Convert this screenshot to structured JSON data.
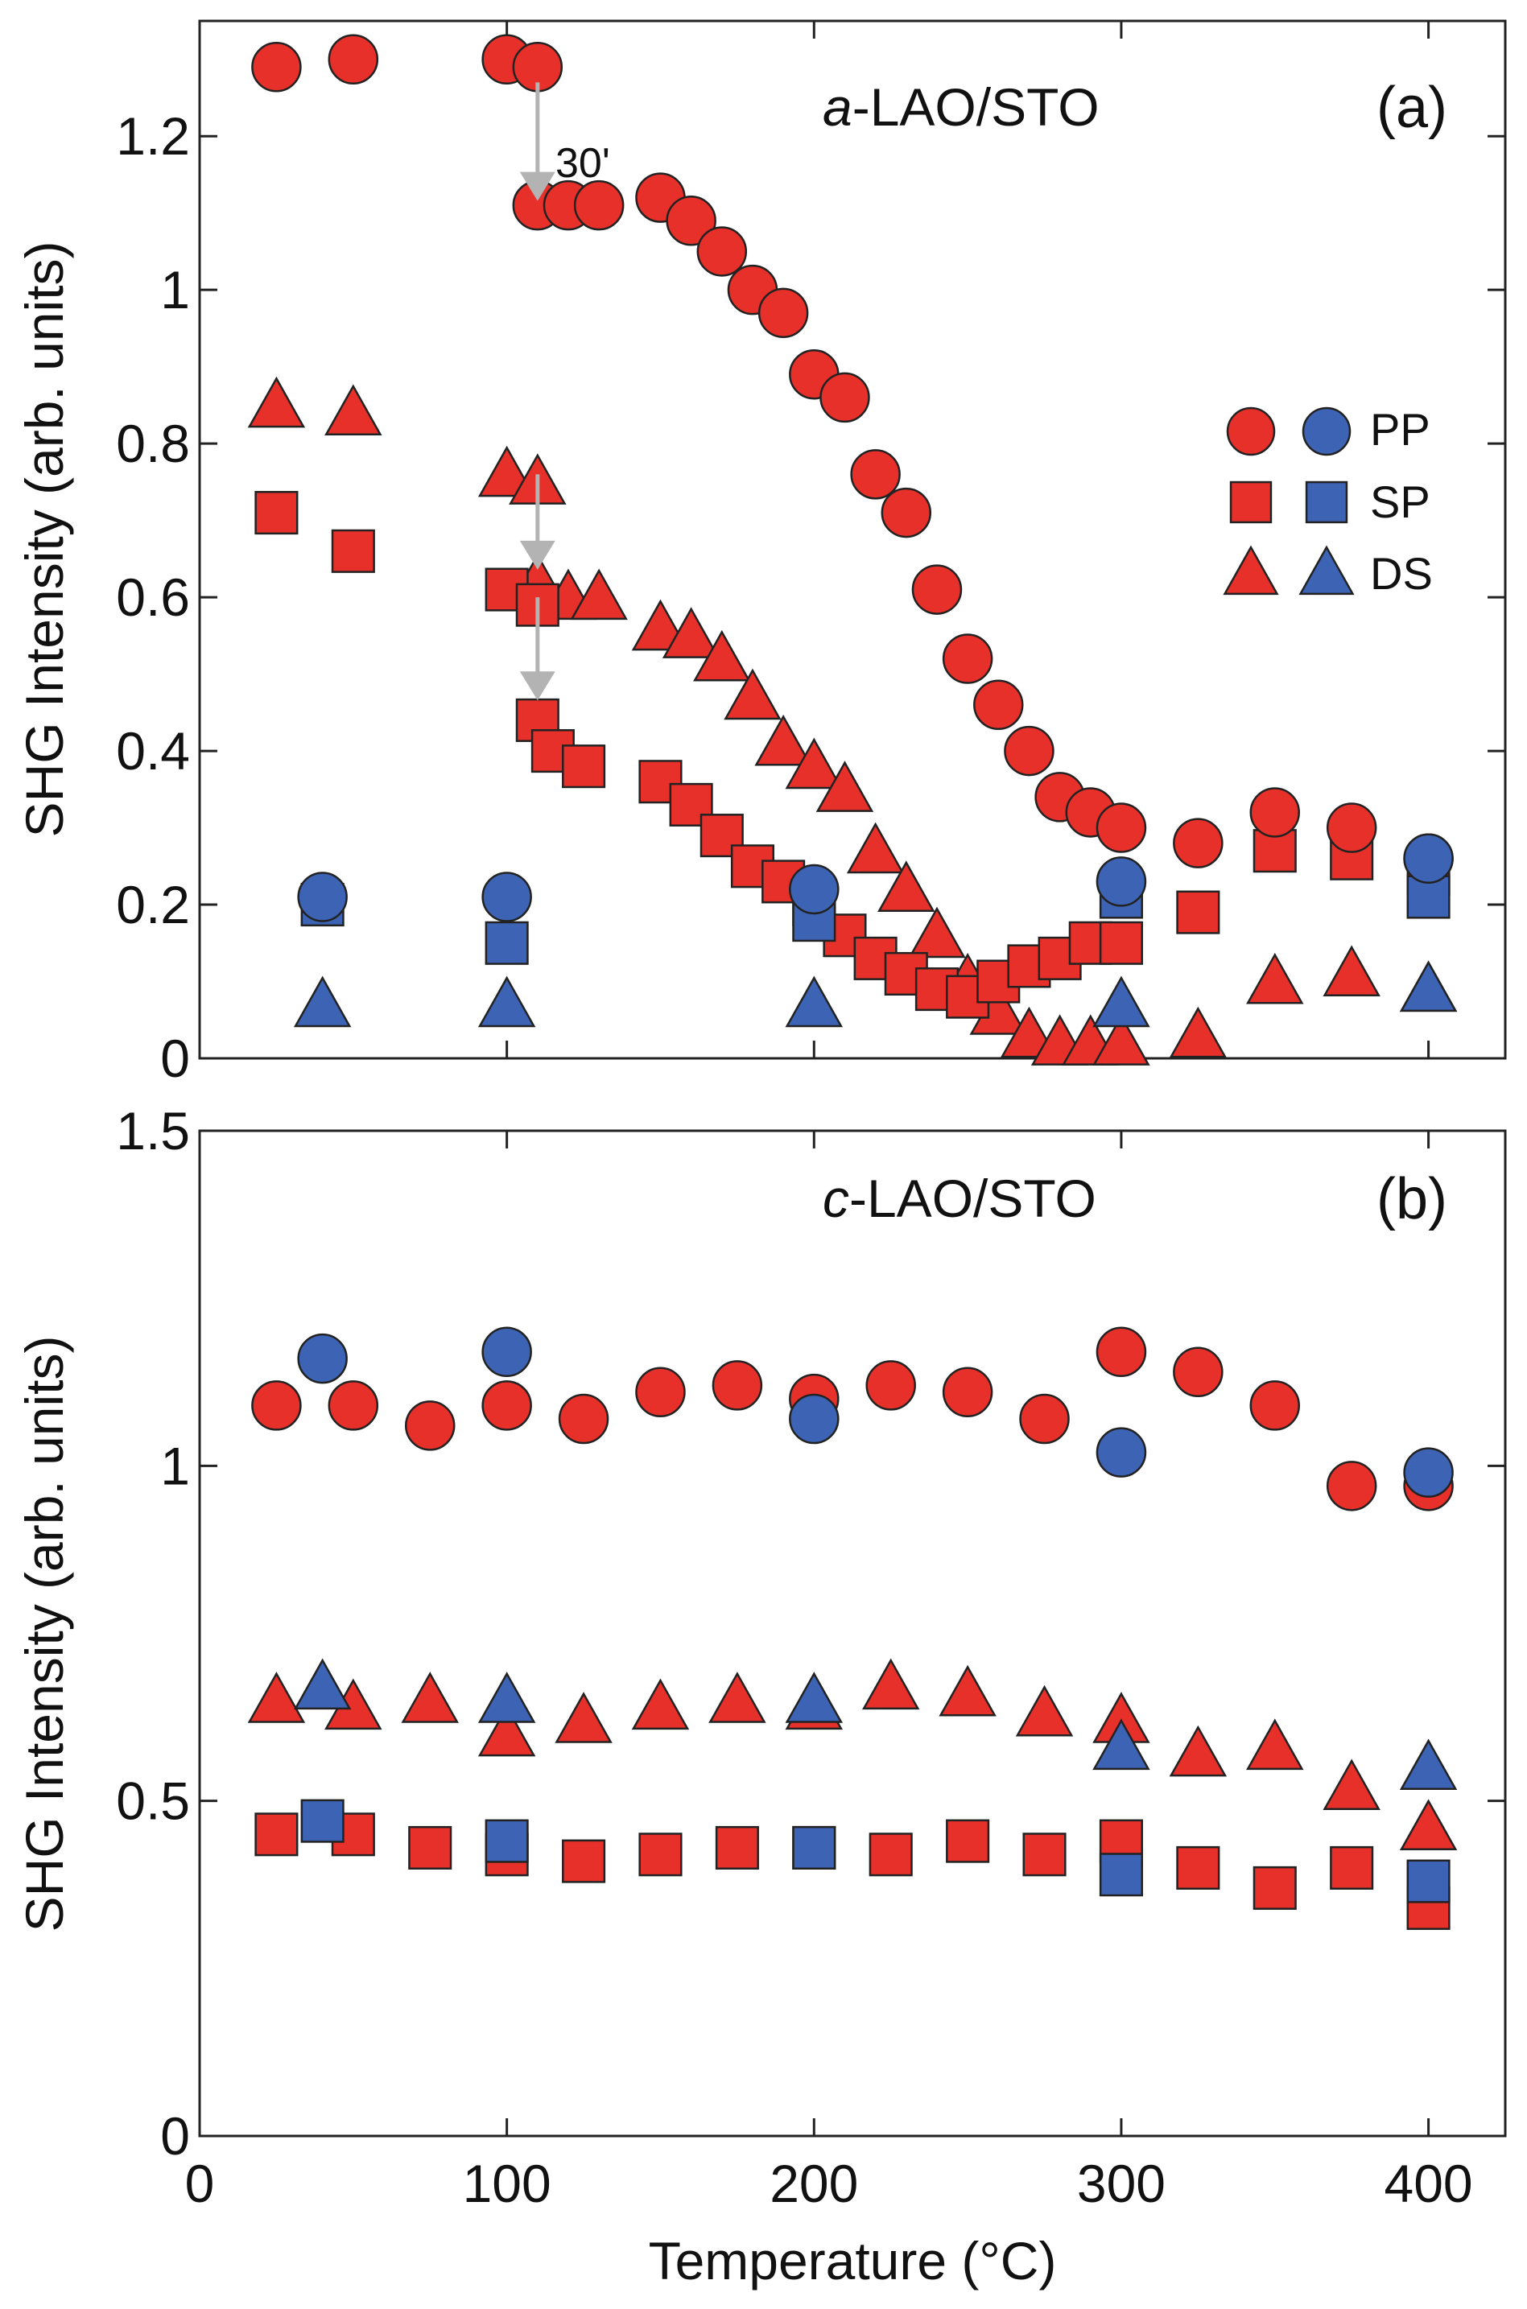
{
  "colors": {
    "red": "#e8302a",
    "blue": "#3d63b5",
    "arrow": "#b3b3b3",
    "edge": "#222222"
  },
  "figure": {
    "xlabel": "Temperature (°C)",
    "ylabel": "SHG Intensity (arb. units)"
  },
  "chart_data": [
    {
      "type": "scatter",
      "panel_label": "(a)",
      "title_italic": "a",
      "title_rest": "-LAO/STO",
      "ylabel": "SHG Intensity (arb. units)",
      "xlim": [
        0,
        425
      ],
      "ylim": [
        0,
        1.35
      ],
      "xticks": [
        0,
        100,
        200,
        300,
        400
      ],
      "yticks": [
        0,
        0.2,
        0.4,
        0.6,
        0.8,
        1,
        1.2
      ],
      "ytick_labels": [
        "0",
        "0.2",
        "0.4",
        "0.6",
        "0.8",
        "1",
        "1.2"
      ],
      "legend": {
        "position": "right",
        "entries": [
          {
            "label": "PP",
            "marker": "circle"
          },
          {
            "label": "SP",
            "marker": "square"
          },
          {
            "label": "DS",
            "marker": "triangle"
          }
        ]
      },
      "annotations": [
        {
          "text": "30'",
          "x": 117,
          "y": 1.22
        },
        {
          "type": "arrow",
          "x": 110,
          "from": 1.27,
          "to": 1.12
        },
        {
          "type": "arrow",
          "x": 110,
          "from": 0.76,
          "to": 0.64
        },
        {
          "type": "arrow",
          "x": 110,
          "from": 0.6,
          "to": 0.47
        }
      ],
      "series": [
        {
          "name": "PP",
          "color": "red",
          "marker": "circle",
          "x": [
            25,
            50,
            100,
            110,
            110,
            120,
            130,
            150,
            160,
            170,
            180,
            190,
            200,
            210,
            220,
            230,
            240,
            250,
            260,
            270,
            280,
            290,
            300,
            325,
            350,
            375,
            400
          ],
          "y": [
            1.29,
            1.3,
            1.3,
            1.29,
            1.11,
            1.11,
            1.11,
            1.12,
            1.09,
            1.05,
            1.0,
            0.97,
            0.89,
            0.86,
            0.76,
            0.71,
            0.61,
            0.52,
            0.46,
            0.4,
            0.34,
            0.32,
            0.3,
            0.28,
            0.32,
            0.3,
            0.26
          ]
        },
        {
          "name": "SP",
          "color": "red",
          "marker": "square",
          "x": [
            25,
            50,
            100,
            110,
            110,
            115,
            125,
            150,
            160,
            170,
            180,
            190,
            200,
            210,
            220,
            230,
            240,
            250,
            260,
            270,
            280,
            290,
            300,
            325,
            350,
            375,
            400
          ],
          "y": [
            0.71,
            0.66,
            0.61,
            0.59,
            0.44,
            0.4,
            0.38,
            0.36,
            0.33,
            0.29,
            0.25,
            0.23,
            0.2,
            0.16,
            0.13,
            0.11,
            0.09,
            0.08,
            0.1,
            0.12,
            0.13,
            0.15,
            0.15,
            0.19,
            0.27,
            0.26,
            0.24
          ]
        },
        {
          "name": "DS",
          "color": "red",
          "marker": "triangle",
          "x": [
            25,
            50,
            100,
            110,
            110,
            120,
            130,
            150,
            160,
            170,
            180,
            190,
            200,
            210,
            220,
            230,
            240,
            250,
            260,
            270,
            280,
            290,
            300,
            325,
            350,
            375,
            400
          ],
          "y": [
            0.85,
            0.84,
            0.76,
            0.75,
            0.62,
            0.6,
            0.6,
            0.56,
            0.55,
            0.52,
            0.47,
            0.41,
            0.38,
            0.35,
            0.27,
            0.22,
            0.16,
            0.1,
            0.06,
            0.03,
            0.02,
            0.02,
            0.02,
            0.03,
            0.1,
            0.11,
            0.09
          ]
        },
        {
          "name": "PP",
          "color": "blue",
          "marker": "circle",
          "x": [
            40,
            100,
            200,
            300,
            400
          ],
          "y": [
            0.21,
            0.21,
            0.22,
            0.23,
            0.26
          ]
        },
        {
          "name": "SP",
          "color": "blue",
          "marker": "square",
          "x": [
            40,
            100,
            200,
            300,
            400
          ],
          "y": [
            0.2,
            0.15,
            0.18,
            0.21,
            0.21
          ]
        },
        {
          "name": "DS",
          "color": "blue",
          "marker": "triangle",
          "x": [
            40,
            100,
            200,
            300,
            400
          ],
          "y": [
            0.07,
            0.07,
            0.07,
            0.07,
            0.09
          ]
        }
      ]
    },
    {
      "type": "scatter",
      "panel_label": "(b)",
      "title_italic": "c",
      "title_rest": "-LAO/STO",
      "ylabel": "SHG Intensity (arb. units)",
      "xlabel": "Temperature (°C)",
      "xlim": [
        0,
        425
      ],
      "ylim": [
        0,
        1.5
      ],
      "xticks": [
        0,
        100,
        200,
        300,
        400
      ],
      "xtick_labels": [
        "0",
        "100",
        "200",
        "300",
        "400"
      ],
      "yticks": [
        0,
        0.5,
        1,
        1.5
      ],
      "ytick_labels": [
        "0",
        "0.5",
        "1",
        "1.5"
      ],
      "series": [
        {
          "name": "PP",
          "color": "red",
          "marker": "circle",
          "x": [
            25,
            50,
            75,
            100,
            125,
            150,
            175,
            200,
            225,
            250,
            275,
            300,
            325,
            350,
            375,
            400
          ],
          "y": [
            1.09,
            1.09,
            1.06,
            1.09,
            1.07,
            1.11,
            1.12,
            1.1,
            1.12,
            1.11,
            1.07,
            1.17,
            1.14,
            1.09,
            0.97,
            0.97
          ]
        },
        {
          "name": "SP",
          "color": "red",
          "marker": "square",
          "x": [
            25,
            50,
            75,
            100,
            125,
            150,
            175,
            200,
            225,
            250,
            275,
            300,
            325,
            350,
            375,
            400
          ],
          "y": [
            0.45,
            0.45,
            0.43,
            0.42,
            0.41,
            0.42,
            0.43,
            0.43,
            0.42,
            0.44,
            0.42,
            0.44,
            0.4,
            0.37,
            0.4,
            0.34
          ]
        },
        {
          "name": "DS",
          "color": "red",
          "marker": "triangle",
          "x": [
            25,
            50,
            75,
            100,
            125,
            150,
            175,
            200,
            225,
            250,
            275,
            300,
            325,
            350,
            375,
            400
          ],
          "y": [
            0.65,
            0.64,
            0.65,
            0.6,
            0.62,
            0.64,
            0.65,
            0.64,
            0.67,
            0.66,
            0.63,
            0.62,
            0.57,
            0.58,
            0.52,
            0.46
          ]
        },
        {
          "name": "PP",
          "color": "blue",
          "marker": "circle",
          "x": [
            40,
            100,
            200,
            300,
            400
          ],
          "y": [
            1.16,
            1.17,
            1.07,
            1.02,
            0.99
          ]
        },
        {
          "name": "SP",
          "color": "blue",
          "marker": "square",
          "x": [
            40,
            100,
            200,
            300,
            400
          ],
          "y": [
            0.47,
            0.44,
            0.43,
            0.39,
            0.38
          ]
        },
        {
          "name": "DS",
          "color": "blue",
          "marker": "triangle",
          "x": [
            40,
            100,
            200,
            300,
            400
          ],
          "y": [
            0.67,
            0.65,
            0.65,
            0.58,
            0.55
          ]
        }
      ]
    }
  ]
}
